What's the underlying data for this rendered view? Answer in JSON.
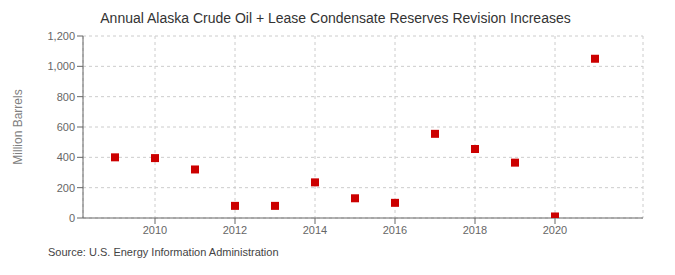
{
  "chart_data": {
    "type": "scatter",
    "title": "Annual Alaska Crude Oil + Lease Condensate Reserves Revision Increases",
    "ylabel": "Million Barrels",
    "annotation": "Source: U.S. Energy Information Administration",
    "x": [
      2009,
      2010,
      2011,
      2012,
      2013,
      2014,
      2015,
      2016,
      2017,
      2018,
      2019,
      2020,
      2021
    ],
    "values": [
      400,
      395,
      320,
      80,
      80,
      235,
      130,
      100,
      555,
      455,
      365,
      10,
      1050
    ],
    "color": "#cc0000",
    "marker": "square",
    "xlim": [
      2008.2,
      2022.2
    ],
    "xticks": [
      2010,
      2012,
      2014,
      2016,
      2018,
      2020
    ],
    "ylim": [
      0,
      1200
    ],
    "yticks": [
      0,
      200,
      400,
      600,
      800,
      {
        "value": 1000,
        "label": "1,000"
      },
      {
        "value": 1200,
        "label": "1,200"
      }
    ],
    "grid": true
  }
}
